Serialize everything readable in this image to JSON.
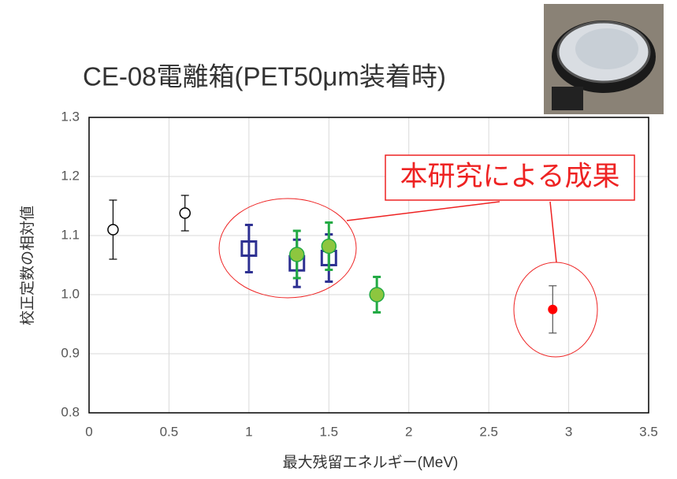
{
  "chart_data": {
    "type": "scatter",
    "title": "CE-08電離箱(PET50μm装着時)",
    "annotation": "本研究による成果",
    "x_label": "最大残留エネルギー(MeV)",
    "y_label": "校正定数の相対値",
    "xlim": [
      0,
      3.5
    ],
    "xticks": [
      0,
      0.5,
      1,
      1.5,
      2,
      2.5,
      3,
      3.5
    ],
    "ylim": [
      0.8,
      1.3
    ],
    "yticks": [
      0.8,
      0.9,
      {
        "value": 1,
        "label": "1.0"
      },
      1.1,
      1.2,
      1.3
    ],
    "grid": true,
    "series": [
      {
        "marker": "circle",
        "color": "#000000",
        "fill": "#ffffff",
        "x": [
          0.15,
          0.6
        ],
        "values": [
          1.11,
          1.138
        ],
        "errors": [
          0.05,
          0.03
        ]
      },
      {
        "marker": "square",
        "color": "#2e3192",
        "fill": "#ffffff",
        "x": [
          1.0,
          1.3,
          1.5
        ],
        "values": [
          1.078,
          1.053,
          1.062
        ],
        "errors": [
          0.04,
          0.04,
          0.04
        ]
      },
      {
        "marker": "circle",
        "color": "#22aa44",
        "fill": "#8dc63f",
        "x": [
          1.3,
          1.5,
          1.8
        ],
        "values": [
          1.068,
          1.082,
          1.0
        ],
        "errors": [
          0.04,
          0.04,
          0.03
        ]
      },
      {
        "marker": "dot",
        "color": "#555555",
        "fill": "#ff0000",
        "x": [
          2.9
        ],
        "values": [
          0.975
        ],
        "errors": [
          0.04
        ]
      }
    ]
  }
}
